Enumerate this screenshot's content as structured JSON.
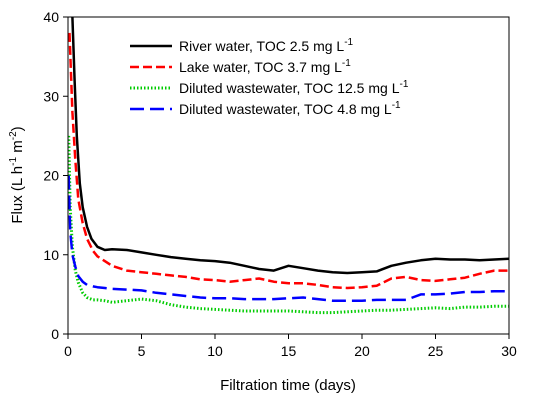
{
  "chart_data": {
    "type": "line",
    "xlabel": "Filtration time (days)",
    "ylabel": {
      "main": "Flux (L h",
      "exp1": "-1",
      "mid": " m",
      "exp2": "-2",
      "end": ")"
    },
    "xlim": [
      0,
      30
    ],
    "ylim": [
      0,
      40
    ],
    "xticks": [
      0,
      5,
      10,
      15,
      20,
      25,
      30
    ],
    "yticks": [
      0,
      10,
      20,
      30,
      40
    ],
    "grid": false,
    "legend_position": "top-right",
    "series": [
      {
        "name": {
          "main": "River water, TOC 2.5 mg L",
          "exp": "-1"
        },
        "color": "#000000",
        "dash": "solid",
        "x": [
          0.3,
          0.45,
          0.6,
          0.8,
          1.0,
          1.3,
          1.6,
          2.0,
          2.5,
          3,
          4,
          5,
          6,
          7,
          8,
          9,
          10,
          11,
          12,
          13,
          14,
          15,
          16,
          17,
          18,
          19,
          20,
          21,
          22,
          23,
          24,
          25,
          26,
          27,
          28,
          29,
          30
        ],
        "y": [
          40,
          32,
          25,
          19,
          16,
          13.5,
          12,
          11,
          10.6,
          10.7,
          10.6,
          10.3,
          10.0,
          9.7,
          9.5,
          9.3,
          9.2,
          9.0,
          8.6,
          8.2,
          8.0,
          8.6,
          8.3,
          8.0,
          7.8,
          7.7,
          7.8,
          7.9,
          8.6,
          9.0,
          9.3,
          9.5,
          9.4,
          9.4,
          9.3,
          9.4,
          9.5
        ]
      },
      {
        "name": {
          "main": "Lake water, TOC 3.7 mg L",
          "exp": "-1"
        },
        "color": "#ff0000",
        "dash": "dash",
        "x": [
          0.1,
          0.3,
          0.5,
          0.7,
          1.0,
          1.3,
          1.7,
          2.0,
          2.5,
          3,
          4,
          5,
          6,
          7,
          8,
          9,
          10,
          11,
          12,
          13,
          14,
          15,
          16,
          17,
          18,
          19,
          20,
          21,
          22,
          23,
          24,
          25,
          26,
          27,
          28,
          29,
          30
        ],
        "y": [
          38,
          28,
          22,
          17,
          14,
          12,
          10.5,
          9.8,
          9.2,
          8.6,
          8.0,
          7.8,
          7.6,
          7.4,
          7.2,
          6.9,
          6.8,
          6.6,
          6.8,
          7.0,
          6.6,
          6.4,
          6.4,
          6.2,
          5.9,
          5.8,
          5.9,
          6.1,
          7.0,
          7.2,
          6.8,
          6.7,
          6.9,
          7.1,
          7.6,
          8.0,
          8.0
        ]
      },
      {
        "name": {
          "main": "Diluted wastewater, TOC 12.5 mg L",
          "exp": "-1"
        },
        "color": "#00cc00",
        "dash": "dot",
        "x": [
          0.05,
          0.15,
          0.3,
          0.5,
          0.7,
          1.0,
          1.3,
          1.7,
          2.0,
          2.5,
          3,
          3.5,
          4,
          5,
          6,
          7,
          8,
          9,
          10,
          11,
          12,
          13,
          14,
          15,
          16,
          17,
          18,
          19,
          20,
          21,
          22,
          23,
          24,
          25,
          26,
          27,
          28,
          29,
          30
        ],
        "y": [
          25,
          16,
          11,
          8,
          6.5,
          5.2,
          4.6,
          4.3,
          4.3,
          4.2,
          4.0,
          4.1,
          4.2,
          4.4,
          4.2,
          3.7,
          3.4,
          3.2,
          3.1,
          3.0,
          2.9,
          2.9,
          2.9,
          2.9,
          2.8,
          2.7,
          2.7,
          2.8,
          2.9,
          3.0,
          3.0,
          3.1,
          3.2,
          3.3,
          3.2,
          3.4,
          3.4,
          3.5,
          3.5
        ]
      },
      {
        "name": {
          "main": "Diluted wastewater, TOC 4.8 mg L",
          "exp": "-1"
        },
        "color": "#0000ff",
        "dash": "longdash",
        "x": [
          0.05,
          0.15,
          0.3,
          0.5,
          0.7,
          1.0,
          1.3,
          1.7,
          2.0,
          2.5,
          3,
          4,
          5,
          6,
          7,
          8,
          9,
          10,
          11,
          12,
          13,
          14,
          15,
          16,
          17,
          18,
          19,
          20,
          21,
          22,
          23,
          24,
          25,
          26,
          27,
          28,
          29,
          30
        ],
        "y": [
          20,
          13,
          10,
          8.5,
          7.3,
          6.6,
          6.2,
          6.0,
          5.9,
          5.8,
          5.7,
          5.6,
          5.5,
          5.2,
          5.0,
          4.8,
          4.6,
          4.5,
          4.5,
          4.4,
          4.4,
          4.4,
          4.5,
          4.6,
          4.4,
          4.2,
          4.2,
          4.2,
          4.3,
          4.3,
          4.3,
          5.0,
          5.0,
          5.1,
          5.3,
          5.3,
          5.4,
          5.4
        ]
      }
    ]
  }
}
